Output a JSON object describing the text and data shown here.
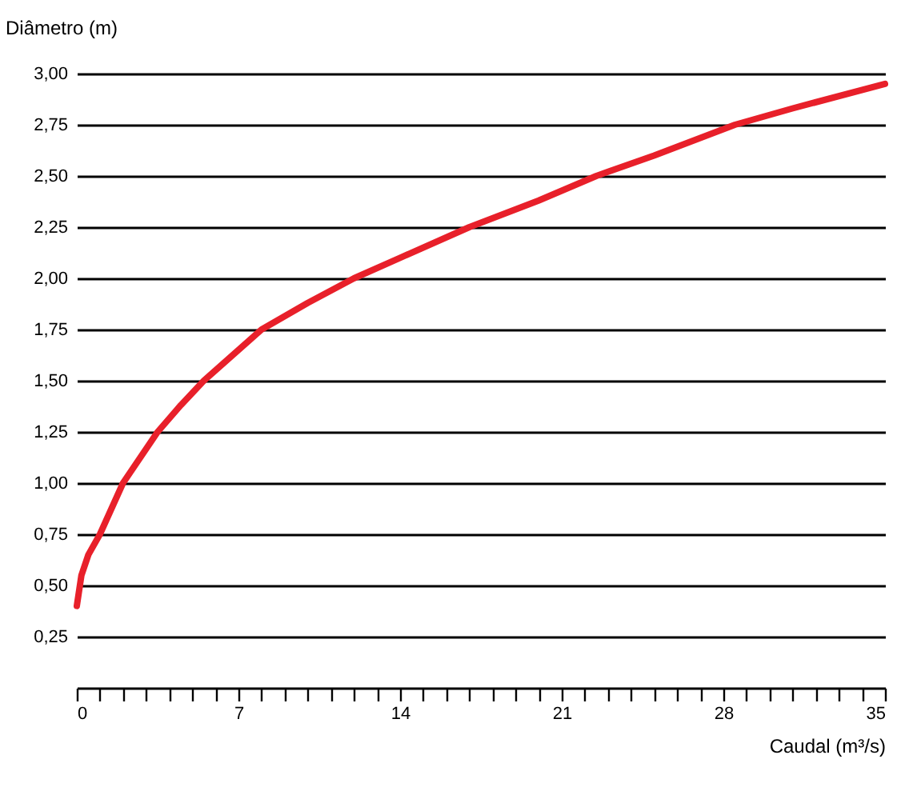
{
  "chart_data": {
    "type": "line",
    "xlabel": "Caudal (m³/s)",
    "ylabel": "Diâmetro (m)",
    "x": [
      0,
      0.2,
      0.5,
      1,
      2,
      3.5,
      4.5,
      5.5,
      8,
      10,
      12,
      14,
      17,
      20,
      22.5,
      25,
      28.5,
      31,
      35
    ],
    "series": [
      {
        "color": "#e8202a",
        "values": [
          0.4,
          0.55,
          0.65,
          0.75,
          1.0,
          1.25,
          1.38,
          1.5,
          1.75,
          1.88,
          2.0,
          2.1,
          2.25,
          2.38,
          2.5,
          2.6,
          2.75,
          2.83,
          2.95
        ]
      }
    ],
    "xlim": [
      0,
      35
    ],
    "xticks": [
      0,
      {
        "value": 1,
        "label": null
      },
      {
        "value": 2,
        "label": null
      },
      {
        "value": 3,
        "label": null
      },
      {
        "value": 4,
        "label": null
      },
      {
        "value": 5,
        "label": null
      },
      {
        "value": 6,
        "label": null
      },
      7,
      {
        "value": 8,
        "label": null
      },
      {
        "value": 9,
        "label": null
      },
      {
        "value": 10,
        "label": null
      },
      {
        "value": 11,
        "label": null
      },
      {
        "value": 12,
        "label": null
      },
      {
        "value": 13,
        "label": null
      },
      14,
      {
        "value": 15,
        "label": null
      },
      {
        "value": 16,
        "label": null
      },
      {
        "value": 17,
        "label": null
      },
      {
        "value": 18,
        "label": null
      },
      {
        "value": 19,
        "label": null
      },
      {
        "value": 20,
        "label": null
      },
      21,
      {
        "value": 22,
        "label": null
      },
      {
        "value": 23,
        "label": null
      },
      {
        "value": 24,
        "label": null
      },
      {
        "value": 25,
        "label": null
      },
      {
        "value": 26,
        "label": null
      },
      {
        "value": 27,
        "label": null
      },
      28,
      {
        "value": 29,
        "label": null
      },
      {
        "value": 30,
        "label": null
      },
      {
        "value": 31,
        "label": null
      },
      {
        "value": 32,
        "label": null
      },
      {
        "value": 33,
        "label": null
      },
      {
        "value": 34,
        "label": null
      },
      35
    ],
    "ylim": [
      0,
      3
    ],
    "yticks": [
      {
        "value": 0.25,
        "label": "0,25"
      },
      {
        "value": 0.5,
        "label": "0,50"
      },
      {
        "value": 0.75,
        "label": "0,75"
      },
      {
        "value": 1,
        "label": "1,00"
      },
      {
        "value": 1.25,
        "label": "1,25"
      },
      {
        "value": 1.5,
        "label": "1,50"
      },
      {
        "value": 1.75,
        "label": "1,75"
      },
      {
        "value": 2,
        "label": "2,00"
      },
      {
        "value": 2.25,
        "label": "2,25"
      },
      {
        "value": 2.5,
        "label": "2,50"
      },
      {
        "value": 2.75,
        "label": "2,75"
      },
      {
        "value": 3,
        "label": "3,00"
      }
    ],
    "grid": "y",
    "marker": "none",
    "line_style": "solid"
  }
}
